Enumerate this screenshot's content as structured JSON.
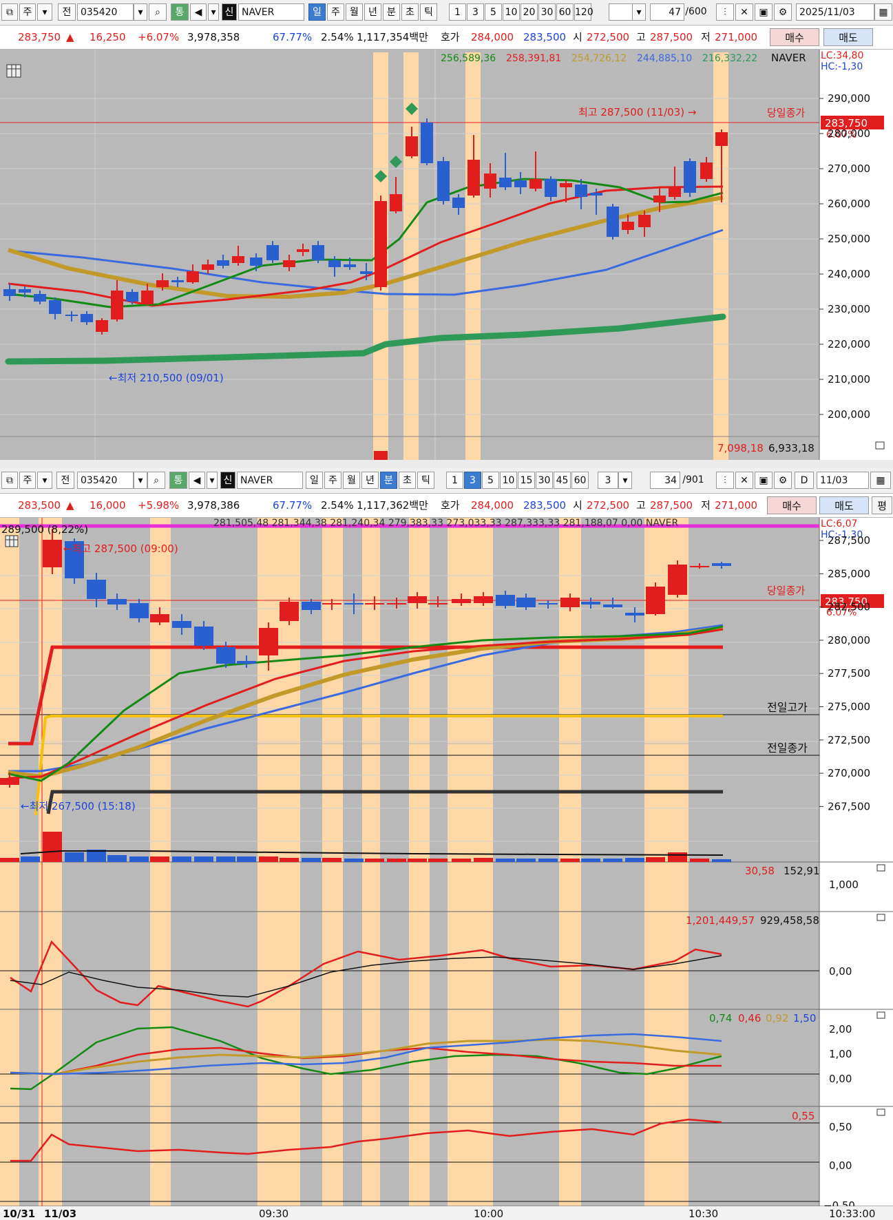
{
  "top": {
    "toolbar": {
      "market": "주",
      "prev": "전",
      "code": "035420",
      "tong": "통",
      "sin": "신",
      "name": "NAVER",
      "periods": [
        "일",
        "주",
        "월",
        "년",
        "분",
        "초",
        "틱"
      ],
      "selected_period": "일",
      "intervals": [
        "1",
        "3",
        "5",
        "10",
        "20",
        "30",
        "60",
        "120"
      ],
      "count": "47",
      "total": "/600",
      "date": "2025/11/03"
    },
    "info": {
      "price": "283,750",
      "change_arrow": "▲",
      "change": "16,250",
      "change_pct": "+6.07%",
      "volume": "3,978,358",
      "ratio1": "67.77%",
      "ratio2": "2.54%",
      "amount": "1,117,354백만",
      "quote_label": "호가",
      "ask": "284,000",
      "bid": "283,500",
      "open_label": "시",
      "open": "272,500",
      "high_label": "고",
      "high": "287,500",
      "low_label": "저",
      "low": "271,000",
      "buy": "매수",
      "sell": "매도"
    },
    "chart": {
      "ma_values": [
        "256,589,36",
        "258,391,81",
        "254,726,12",
        "244,885,10",
        "216,332,22"
      ],
      "ma_colors": [
        "#138a13",
        "#e21d1d",
        "#c29a2a",
        "#3a6ae0",
        "#2f9a58"
      ],
      "ticker": "NAVER",
      "lc": "LC:34,80",
      "hc": "HC:-1,30",
      "high_note": "최고 287,500 (11/03) →",
      "low_note": "←최저 210,500 (09/01)",
      "close_label": "당일종가",
      "price_tag": "283,750",
      "pct_tag": "6.07%",
      "y_ticks": [
        "290,000",
        "280,000",
        "270,000",
        "260,000",
        "250,000",
        "240,000",
        "230,000",
        "220,000",
        "210,000",
        "200,000"
      ],
      "vol_values": [
        "7,098,18",
        "6,933,18"
      ]
    }
  },
  "bottom": {
    "toolbar": {
      "market": "주",
      "prev": "전",
      "code": "035420",
      "tong": "통",
      "sin": "신",
      "name": "NAVER",
      "periods": [
        "일",
        "주",
        "월",
        "년",
        "분",
        "초",
        "틱"
      ],
      "selected_period": "분",
      "intervals": [
        "1",
        "3",
        "5",
        "10",
        "15",
        "30",
        "45",
        "60"
      ],
      "selected_interval": "3",
      "combo": "3",
      "count": "34",
      "total": "/901",
      "d_label": "D",
      "date": "11/03",
      "flat": "평"
    },
    "info": {
      "price": "283,500",
      "change_arrow": "▲",
      "change": "16,000",
      "change_pct": "+5.98%",
      "volume": "3,978,386",
      "ratio1": "67.77%",
      "ratio2": "2.54%",
      "amount": "1,117,362백만",
      "quote_label": "호가",
      "ask": "284,000",
      "bid": "283,500",
      "open_label": "시",
      "open": "272,500",
      "high_label": "고",
      "high": "287,500",
      "low_label": "저",
      "low": "271,000",
      "buy": "매수",
      "sell": "매도"
    },
    "chart": {
      "top_left": "289,500 (8,22%)",
      "ma_strip": "281,505,48  281,344,38  281,240,34  279,383,33  273,033,33      287,333,33  281,188,07  0,00  NAVER",
      "lc": "LC:6,07",
      "hc": "HC:-1,30",
      "high_note": "←최고 287,500 (09:00)",
      "low_note": "←최저 267,500 (15:18)",
      "close_label": "당일종가",
      "price_tag": "283,750",
      "pct_tag": "6.07%",
      "prev_high_label": "전일고가",
      "prev_close_label": "전일종가",
      "y_ticks": [
        "287,500",
        "285,000",
        "282,500",
        "280,000",
        "277,500",
        "275,000",
        "272,500",
        "270,000",
        "267,500"
      ],
      "vol_values": [
        "30,58",
        "152,91"
      ],
      "vol_tick": "1,000",
      "ind1_values": [
        "1,201,449,57",
        "929,458,58"
      ],
      "ind1_tick": "0,00",
      "ind2_values": [
        "0,74",
        "0,46",
        "0,92",
        "1,50"
      ],
      "ind2_ticks": [
        "2,00",
        "1,00",
        "0,00"
      ],
      "ind3_value": "0,55",
      "ind3_ticks": [
        "0,50",
        "0,00",
        "−0,50"
      ],
      "x_labels": [
        "10/31",
        "11/03",
        "09:30",
        "10:00",
        "10:30",
        "10:33:00"
      ]
    }
  }
}
